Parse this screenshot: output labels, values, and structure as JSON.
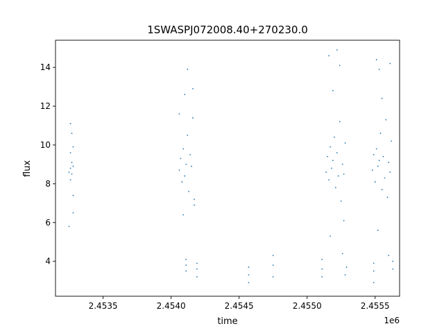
{
  "chart_data": {
    "type": "scatter",
    "title": "1SWASPJ072008.40+270230.0",
    "xlabel": "time",
    "ylabel": "flux",
    "x_offset_label": "1e6",
    "xlim": [
      2.45315,
      2.45568
    ],
    "ylim": [
      2.2,
      15.4
    ],
    "xticks": [
      2.4535,
      2.454,
      2.4545,
      2.455,
      2.4555
    ],
    "xtick_labels": [
      "2.4535",
      "2.4540",
      "2.4545",
      "2.4550",
      "2.4555"
    ],
    "yticks": [
      4,
      6,
      8,
      10,
      12,
      14
    ],
    "ytick_labels": [
      "4",
      "6",
      "8",
      "10",
      "12",
      "14"
    ],
    "grid": false,
    "color": "#1f77b4",
    "series": [
      {
        "values": [
          {
            "x": 2.45326,
            "y": 8.8
          },
          {
            "x": 2.45326,
            "y": 9.6
          },
          {
            "x": 2.45326,
            "y": 8.2
          },
          {
            "x": 2.45327,
            "y": 9.1
          },
          {
            "x": 2.45327,
            "y": 8.5
          },
          {
            "x": 2.45327,
            "y": 10.6
          },
          {
            "x": 2.45328,
            "y": 7.4
          },
          {
            "x": 2.45328,
            "y": 9.9
          },
          {
            "x": 2.45328,
            "y": 8.9
          },
          {
            "x": 2.45325,
            "y": 8.6
          },
          {
            "x": 2.45326,
            "y": 11.1
          },
          {
            "x": 2.45325,
            "y": 5.8
          },
          {
            "x": 2.45328,
            "y": 6.5
          },
          {
            "x": 2.45406,
            "y": 8.7
          },
          {
            "x": 2.45407,
            "y": 9.3
          },
          {
            "x": 2.45408,
            "y": 8.1
          },
          {
            "x": 2.45409,
            "y": 9.8
          },
          {
            "x": 2.4541,
            "y": 8.4
          },
          {
            "x": 2.45411,
            "y": 9.0
          },
          {
            "x": 2.45412,
            "y": 10.5
          },
          {
            "x": 2.45413,
            "y": 7.6
          },
          {
            "x": 2.45414,
            "y": 9.5
          },
          {
            "x": 2.45415,
            "y": 8.9
          },
          {
            "x": 2.45416,
            "y": 11.4
          },
          {
            "x": 2.45417,
            "y": 7.2
          },
          {
            "x": 2.4541,
            "y": 12.6
          },
          {
            "x": 2.45412,
            "y": 13.9
          },
          {
            "x": 2.45416,
            "y": 12.9
          },
          {
            "x": 2.45406,
            "y": 11.6
          },
          {
            "x": 2.45409,
            "y": 6.4
          },
          {
            "x": 2.45417,
            "y": 6.9
          },
          {
            "x": 2.45411,
            "y": 3.8
          },
          {
            "x": 2.45411,
            "y": 3.5
          },
          {
            "x": 2.45411,
            "y": 4.1
          },
          {
            "x": 2.45419,
            "y": 3.9
          },
          {
            "x": 2.45419,
            "y": 3.2
          },
          {
            "x": 2.45419,
            "y": 3.6
          },
          {
            "x": 2.45457,
            "y": 3.3
          },
          {
            "x": 2.45457,
            "y": 3.7
          },
          {
            "x": 2.45457,
            "y": 2.9
          },
          {
            "x": 2.45475,
            "y": 3.8
          },
          {
            "x": 2.45475,
            "y": 4.3
          },
          {
            "x": 2.45475,
            "y": 3.2
          },
          {
            "x": 2.45511,
            "y": 3.6
          },
          {
            "x": 2.45511,
            "y": 4.1
          },
          {
            "x": 2.45511,
            "y": 3.2
          },
          {
            "x": 2.45514,
            "y": 8.6
          },
          {
            "x": 2.45515,
            "y": 9.4
          },
          {
            "x": 2.45516,
            "y": 8.2
          },
          {
            "x": 2.45517,
            "y": 9.9
          },
          {
            "x": 2.45518,
            "y": 8.8
          },
          {
            "x": 2.45519,
            "y": 9.2
          },
          {
            "x": 2.4552,
            "y": 10.4
          },
          {
            "x": 2.45521,
            "y": 7.8
          },
          {
            "x": 2.45522,
            "y": 9.6
          },
          {
            "x": 2.45523,
            "y": 8.4
          },
          {
            "x": 2.45524,
            "y": 11.2
          },
          {
            "x": 2.45525,
            "y": 7.1
          },
          {
            "x": 2.45526,
            "y": 9.0
          },
          {
            "x": 2.45527,
            "y": 8.5
          },
          {
            "x": 2.45528,
            "y": 10.1
          },
          {
            "x": 2.45516,
            "y": 14.6
          },
          {
            "x": 2.45522,
            "y": 14.9
          },
          {
            "x": 2.45524,
            "y": 14.1
          },
          {
            "x": 2.45519,
            "y": 12.8
          },
          {
            "x": 2.45527,
            "y": 6.1
          },
          {
            "x": 2.45517,
            "y": 5.3
          },
          {
            "x": 2.45526,
            "y": 4.4
          },
          {
            "x": 2.45528,
            "y": 3.3
          },
          {
            "x": 2.45529,
            "y": 3.7
          },
          {
            "x": 2.45548,
            "y": 8.7
          },
          {
            "x": 2.45549,
            "y": 9.5
          },
          {
            "x": 2.4555,
            "y": 8.1
          },
          {
            "x": 2.45551,
            "y": 9.8
          },
          {
            "x": 2.45552,
            "y": 8.9
          },
          {
            "x": 2.45553,
            "y": 9.2
          },
          {
            "x": 2.45554,
            "y": 10.6
          },
          {
            "x": 2.45555,
            "y": 7.7
          },
          {
            "x": 2.45556,
            "y": 9.4
          },
          {
            "x": 2.45557,
            "y": 8.3
          },
          {
            "x": 2.45558,
            "y": 11.3
          },
          {
            "x": 2.45559,
            "y": 7.3
          },
          {
            "x": 2.4556,
            "y": 9.1
          },
          {
            "x": 2.45561,
            "y": 8.6
          },
          {
            "x": 2.45562,
            "y": 10.2
          },
          {
            "x": 2.45551,
            "y": 14.4
          },
          {
            "x": 2.45553,
            "y": 13.9
          },
          {
            "x": 2.45561,
            "y": 14.2
          },
          {
            "x": 2.45555,
            "y": 12.4
          },
          {
            "x": 2.45552,
            "y": 5.6
          },
          {
            "x": 2.4556,
            "y": 4.3
          },
          {
            "x": 2.45549,
            "y": 3.5
          },
          {
            "x": 2.45549,
            "y": 3.9
          },
          {
            "x": 2.45549,
            "y": 2.9
          },
          {
            "x": 2.45563,
            "y": 3.6
          },
          {
            "x": 2.45563,
            "y": 4.0
          }
        ]
      }
    ]
  }
}
